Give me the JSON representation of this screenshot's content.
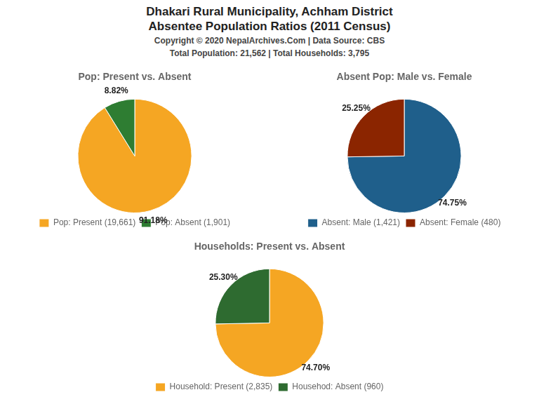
{
  "title": [
    "Dhakari Rural Municipality, Achham District",
    "Absentee Population Ratios (2011 Census)"
  ],
  "subtitle": [
    "Copyright © 2020 NepalArchives.Com | Data Source: CBS",
    "Total Population: 21,562 | Total Households: 3,795"
  ],
  "chart_data": [
    {
      "type": "pie",
      "title": "Pop: Present vs. Absent",
      "categories": [
        "Pop: Present (19,661)",
        "Pop: Absent (1,901)"
      ],
      "values": [
        91.18,
        8.82
      ],
      "value_labels": [
        "91.18%",
        "8.82%"
      ],
      "colors": [
        "#f5a623",
        "#2e7d32"
      ],
      "data_labels": true,
      "legend": "bottom"
    },
    {
      "type": "pie",
      "title": "Absent Pop: Male vs. Female",
      "categories": [
        "Absent: Male (1,421)",
        "Absent: Female (480)"
      ],
      "values": [
        74.75,
        25.25
      ],
      "value_labels": [
        "74.75%",
        "25.25%"
      ],
      "colors": [
        "#1f5f8b",
        "#8b2500"
      ],
      "data_labels": true,
      "legend": "bottom"
    },
    {
      "type": "pie",
      "title": "Households: Present vs. Absent",
      "categories": [
        "Household: Present (2,835)",
        "Househod: Absent (960)"
      ],
      "values": [
        74.7,
        25.3
      ],
      "value_labels": [
        "74.70%",
        "25.30%"
      ],
      "colors": [
        "#f5a623",
        "#2e6b30"
      ],
      "data_labels": true,
      "legend": "bottom"
    }
  ]
}
